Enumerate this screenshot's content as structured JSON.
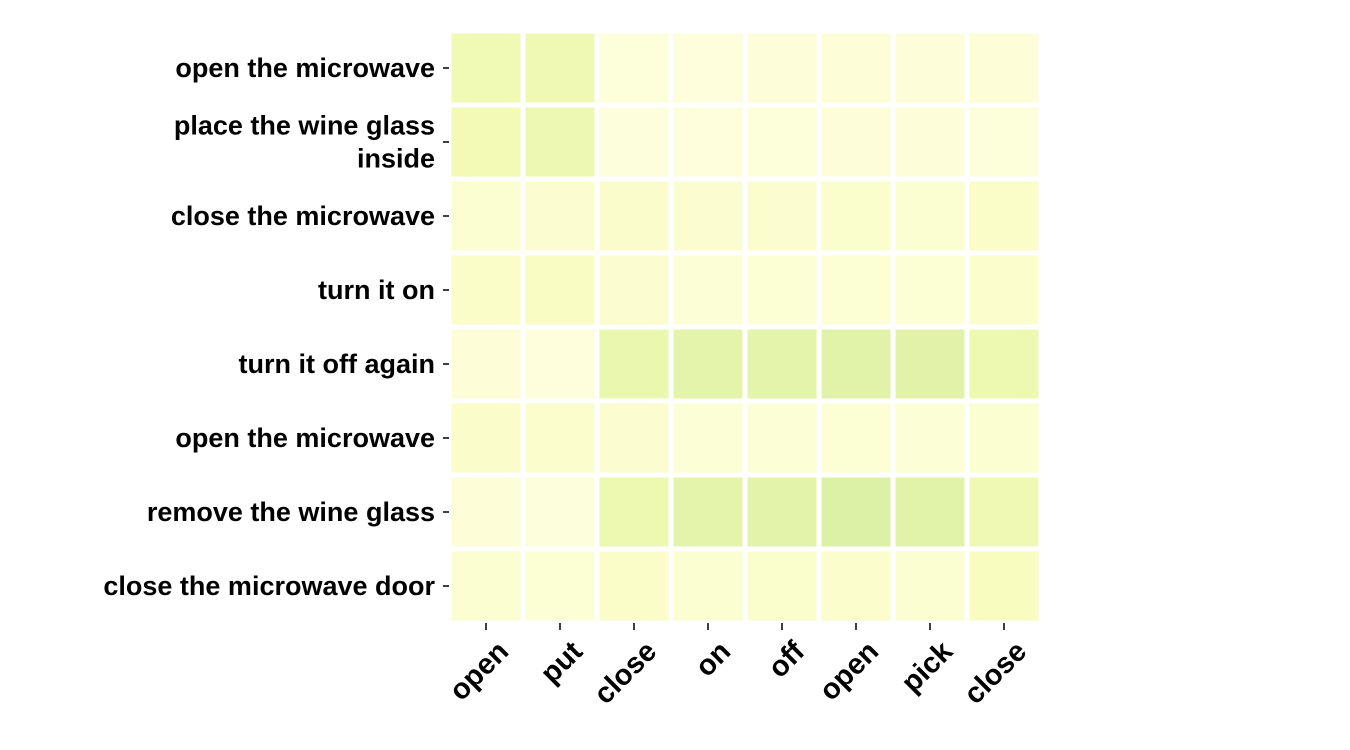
{
  "chart_data": {
    "type": "heatmap",
    "title": "",
    "xlabel": "",
    "ylabel": "",
    "rows": [
      [
        "open the microwave"
      ],
      [
        "place the wine glass",
        "inside"
      ],
      [
        "close the microwave"
      ],
      [
        "turn it on"
      ],
      [
        "turn it off again"
      ],
      [
        "open the microwave"
      ],
      [
        "remove the wine glass"
      ],
      [
        "close the microwave door"
      ]
    ],
    "columns": [
      "open",
      "put",
      "close",
      "on",
      "off",
      "open",
      "pick",
      "close"
    ],
    "values": [
      [
        0.4,
        0.42,
        0.08,
        0.06,
        0.09,
        0.1,
        0.09,
        0.1
      ],
      [
        0.38,
        0.44,
        0.07,
        0.06,
        0.08,
        0.09,
        0.09,
        0.08
      ],
      [
        0.15,
        0.17,
        0.2,
        0.17,
        0.17,
        0.19,
        0.16,
        0.22
      ],
      [
        0.22,
        0.25,
        0.17,
        0.12,
        0.13,
        0.14,
        0.13,
        0.18
      ],
      [
        0.1,
        0.06,
        0.48,
        0.55,
        0.54,
        0.58,
        0.57,
        0.45
      ],
      [
        0.21,
        0.18,
        0.17,
        0.12,
        0.12,
        0.13,
        0.11,
        0.16
      ],
      [
        0.1,
        0.07,
        0.45,
        0.55,
        0.56,
        0.63,
        0.58,
        0.41
      ],
      [
        0.15,
        0.13,
        0.22,
        0.16,
        0.19,
        0.18,
        0.15,
        0.29
      ]
    ],
    "colormap": [
      "#ffffe5",
      "#f7fcb9",
      "#d9f0a3",
      "#addd8e"
    ],
    "colorbar": false
  }
}
